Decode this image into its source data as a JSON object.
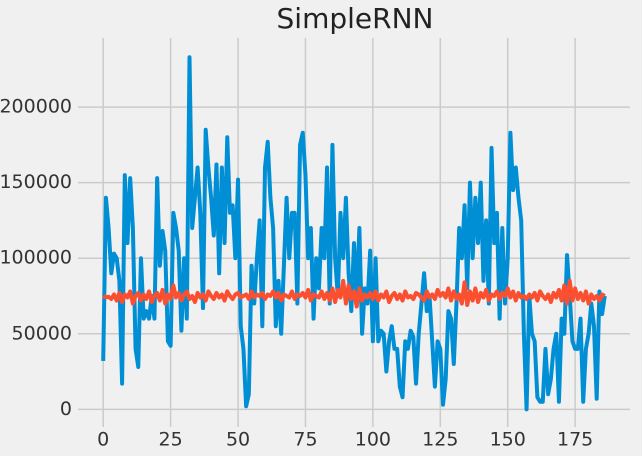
{
  "chart_data": {
    "type": "line",
    "title": "SimpleRNN",
    "x": [
      0,
      1,
      2,
      3,
      4,
      5,
      6,
      7,
      8,
      9,
      10,
      11,
      12,
      13,
      14,
      15,
      16,
      17,
      18,
      19,
      20,
      21,
      22,
      23,
      24,
      25,
      26,
      27,
      28,
      29,
      30,
      31,
      32,
      33,
      34,
      35,
      36,
      37,
      38,
      39,
      40,
      41,
      42,
      43,
      44,
      45,
      46,
      47,
      48,
      49,
      50,
      51,
      52,
      53,
      54,
      55,
      56,
      57,
      58,
      59,
      60,
      61,
      62,
      63,
      64,
      65,
      66,
      67,
      68,
      69,
      70,
      71,
      72,
      73,
      74,
      75,
      76,
      77,
      78,
      79,
      80,
      81,
      82,
      83,
      84,
      85,
      86,
      87,
      88,
      89,
      90,
      91,
      92,
      93,
      94,
      95,
      96,
      97,
      98,
      99,
      100,
      101,
      102,
      103,
      104,
      105,
      106,
      107,
      108,
      109,
      110,
      111,
      112,
      113,
      114,
      115,
      116,
      117,
      118,
      119,
      120,
      121,
      122,
      123,
      124,
      125,
      126,
      127,
      128,
      129,
      130,
      131,
      132,
      133,
      134,
      135,
      136,
      137,
      138,
      139,
      140,
      141,
      142,
      143,
      144,
      145,
      146,
      147,
      148,
      149,
      150,
      151,
      152,
      153,
      154,
      155,
      156,
      157,
      158,
      159,
      160,
      161,
      162,
      163,
      164,
      165,
      166,
      167,
      168,
      169,
      170,
      171,
      172,
      173,
      174,
      175,
      176,
      177,
      178,
      179,
      180,
      181,
      182,
      183,
      184,
      185,
      186
    ],
    "series": [
      {
        "color": "#008fd5",
        "values": [
          32000,
          140000,
          120000,
          90000,
          103000,
          100000,
          85000,
          17000,
          155000,
          110000,
          153000,
          120000,
          40000,
          28000,
          100000,
          60000,
          65000,
          60000,
          75000,
          60000,
          153000,
          95000,
          118000,
          105000,
          45000,
          42000,
          130000,
          120000,
          105000,
          52000,
          100000,
          60000,
          233000,
          120000,
          140000,
          160000,
          130000,
          67000,
          185000,
          160000,
          140000,
          115000,
          162000,
          90000,
          160000,
          110000,
          180000,
          130000,
          135000,
          100000,
          152000,
          55000,
          40000,
          2000,
          10000,
          95000,
          70000,
          100000,
          125000,
          55000,
          160000,
          177000,
          140000,
          120000,
          55000,
          85000,
          50000,
          95000,
          140000,
          100000,
          130000,
          130000,
          70000,
          175000,
          183000,
          155000,
          100000,
          120000,
          60000,
          100000,
          80000,
          120000,
          100000,
          160000,
          70000,
          175000,
          100000,
          75000,
          130000,
          100000,
          140000,
          90000,
          65000,
          110000,
          75000,
          120000,
          50000,
          80000,
          70000,
          105000,
          45000,
          100000,
          45000,
          52000,
          50000,
          25000,
          45000,
          55000,
          40000,
          40000,
          15000,
          8000,
          45000,
          40000,
          52000,
          48000,
          17000,
          50000,
          70000,
          90000,
          65000,
          75000,
          45000,
          15000,
          45000,
          40000,
          3000,
          20000,
          65000,
          60000,
          30000,
          70000,
          120000,
          100000,
          135000,
          80000,
          150000,
          100000,
          140000,
          110000,
          150000,
          85000,
          125000,
          70000,
          173000,
          110000,
          130000,
          60000,
          120000,
          70000,
          100000,
          183000,
          145000,
          160000,
          140000,
          125000,
          50000,
          0,
          75000,
          50000,
          45000,
          8000,
          5000,
          5000,
          40000,
          10000,
          20000,
          40000,
          50000,
          5000,
          60000,
          50000,
          102000,
          75000,
          45000,
          40000,
          40000,
          60000,
          5000,
          40000,
          50000,
          70000,
          55000,
          7000,
          78000,
          63000,
          75000
        ]
      },
      {
        "color": "#fc4f30",
        "values": [
          75000,
          74000,
          74500,
          73000,
          76000,
          72000,
          77000,
          71000,
          76000,
          74000,
          78000,
          70000,
          75000,
          77000,
          72000,
          76000,
          73000,
          78000,
          71000,
          75000,
          77000,
          72000,
          79000,
          70000,
          76000,
          73000,
          82000,
          74000,
          77000,
          72000,
          76000,
          78000,
          73000,
          75000,
          71000,
          77000,
          74000,
          76000,
          72000,
          78000,
          75000,
          73000,
          77000,
          74000,
          76000,
          72000,
          78000,
          75000,
          73000,
          76000,
          77000,
          74000,
          75000,
          76000,
          73000,
          78000,
          74000,
          76000,
          75000,
          77000,
          73000,
          76000,
          75000,
          78000,
          74000,
          77000,
          72000,
          76000,
          75000,
          74000,
          78000,
          73000,
          76000,
          75000,
          77000,
          74000,
          79000,
          72000,
          76000,
          75000,
          74000,
          78000,
          73000,
          77000,
          72000,
          80000,
          71000,
          79000,
          74000,
          85000,
          70000,
          82000,
          73000,
          78000,
          68000,
          80000,
          72000,
          76000,
          74000,
          77000,
          73000,
          78000,
          72000,
          76000,
          74000,
          78000,
          71000,
          75000,
          77000,
          73000,
          76000,
          72000,
          78000,
          74000,
          75000,
          73000,
          77000,
          76000,
          74000,
          72000,
          78000,
          74000,
          76000,
          73000,
          79000,
          75000,
          77000,
          74000,
          80000,
          72000,
          78000,
          73000,
          76000,
          70000,
          84000,
          69000,
          78000,
          72000,
          80000,
          71000,
          77000,
          74000,
          79000,
          72000,
          76000,
          75000,
          78000,
          73000,
          77000,
          75000,
          80000,
          74000,
          78000,
          72000,
          77000,
          74000,
          75000,
          73000,
          76000,
          74000,
          77000,
          72000,
          78000,
          75000,
          73000,
          76000,
          71000,
          77000,
          74000,
          79000,
          72000,
          82000,
          70000,
          85000,
          72000,
          80000,
          73000,
          77000,
          72000,
          78000,
          70000,
          76000,
          73000,
          75000,
          72000,
          76000,
          75000
        ]
      }
    ],
    "xlim": [
      -9.35,
      195.35
    ],
    "ylim": [
      -11700,
      245700
    ],
    "xticks": [
      0,
      25,
      50,
      75,
      100,
      125,
      150,
      175
    ],
    "yticks": [
      0,
      50000,
      100000,
      150000,
      200000
    ],
    "grid": true
  }
}
